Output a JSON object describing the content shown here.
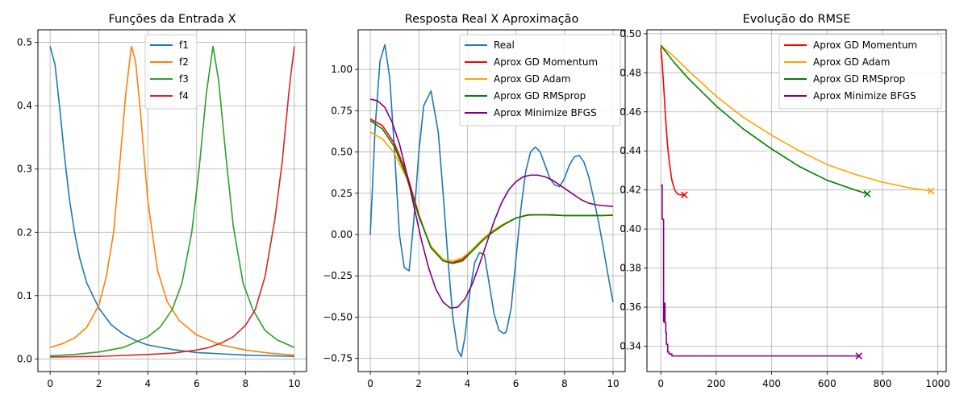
{
  "chart_data": [
    {
      "type": "line",
      "title": "Funções da Entrada X",
      "xlabel": "",
      "ylabel": "",
      "xlim": [
        -0.5,
        10.5
      ],
      "ylim": [
        -0.02,
        0.52
      ],
      "xticks": [
        0,
        2,
        4,
        6,
        8,
        10
      ],
      "yticks": [
        0.0,
        0.1,
        0.2,
        0.3,
        0.4,
        0.5
      ],
      "ytick_labels": [
        "0.0",
        "0.1",
        "0.2",
        "0.3",
        "0.4",
        "0.5"
      ],
      "grid": true,
      "legend_position": "top-center",
      "series": [
        {
          "name": "f1",
          "color": "#1f77b4",
          "x": [
            0,
            0.2,
            0.4,
            0.6,
            0.8,
            1.0,
            1.2,
            1.5,
            2.0,
            2.5,
            3.0,
            3.5,
            4.0,
            5.0,
            6.0,
            7.0,
            8.0,
            9.0,
            10.0
          ],
          "y": [
            0.494,
            0.465,
            0.394,
            0.316,
            0.25,
            0.2,
            0.161,
            0.12,
            0.08,
            0.054,
            0.039,
            0.029,
            0.022,
            0.015,
            0.01,
            0.008,
            0.006,
            0.005,
            0.004
          ]
        },
        {
          "name": "f2",
          "color": "#ff7f0e",
          "x": [
            0,
            0.5,
            1.0,
            1.5,
            2.0,
            2.3,
            2.6,
            2.9,
            3.1,
            3.33,
            3.5,
            3.7,
            4.0,
            4.4,
            4.8,
            5.3,
            6.0,
            7.0,
            8.0,
            9.0,
            10.0
          ],
          "y": [
            0.018,
            0.024,
            0.033,
            0.05,
            0.085,
            0.13,
            0.2,
            0.33,
            0.42,
            0.494,
            0.47,
            0.39,
            0.25,
            0.14,
            0.09,
            0.06,
            0.038,
            0.022,
            0.014,
            0.009,
            0.006
          ]
        },
        {
          "name": "f3",
          "color": "#2ca02c",
          "x": [
            0,
            1.0,
            2.0,
            3.0,
            4.0,
            4.5,
            5.0,
            5.4,
            5.8,
            6.1,
            6.4,
            6.67,
            6.9,
            7.2,
            7.5,
            7.9,
            8.3,
            8.8,
            9.3,
            10.0
          ],
          "y": [
            0.005,
            0.007,
            0.011,
            0.018,
            0.035,
            0.05,
            0.078,
            0.12,
            0.2,
            0.3,
            0.42,
            0.494,
            0.44,
            0.32,
            0.21,
            0.12,
            0.078,
            0.045,
            0.03,
            0.018
          ]
        },
        {
          "name": "f4",
          "color": "#d62728",
          "x": [
            0,
            2.0,
            4.0,
            5.0,
            6.0,
            6.5,
            7.0,
            7.5,
            8.0,
            8.4,
            8.8,
            9.2,
            9.5,
            9.8,
            10.0
          ],
          "y": [
            0.003,
            0.004,
            0.007,
            0.009,
            0.014,
            0.018,
            0.025,
            0.035,
            0.053,
            0.078,
            0.13,
            0.22,
            0.31,
            0.43,
            0.494
          ]
        }
      ]
    },
    {
      "type": "line",
      "title": "Resposta Real X Aproximação",
      "xlabel": "",
      "ylabel": "",
      "xlim": [
        -0.5,
        10.5
      ],
      "ylim": [
        -0.83,
        1.24
      ],
      "xticks": [
        0,
        2,
        4,
        6,
        8,
        10
      ],
      "yticks": [
        -0.75,
        -0.5,
        -0.25,
        0.0,
        0.25,
        0.5,
        0.75,
        1.0
      ],
      "ytick_labels": [
        "−0.75",
        "−0.50",
        "−0.25",
        "0.00",
        "0.25",
        "0.50",
        "0.75",
        "1.00"
      ],
      "grid": true,
      "legend_position": "top-right",
      "series": [
        {
          "name": "Real",
          "color": "#1f77b4",
          "x": [
            0,
            0.2,
            0.4,
            0.6,
            0.8,
            1.0,
            1.2,
            1.4,
            1.6,
            1.8,
            2.0,
            2.2,
            2.5,
            2.8,
            3.0,
            3.2,
            3.4,
            3.6,
            3.75,
            3.9,
            4.1,
            4.3,
            4.5,
            4.7,
            4.9,
            5.1,
            5.3,
            5.5,
            5.6,
            5.8,
            6.0,
            6.2,
            6.4,
            6.6,
            6.8,
            7.0,
            7.2,
            7.4,
            7.6,
            7.8,
            8.0,
            8.2,
            8.4,
            8.6,
            8.8,
            9.0,
            9.2,
            9.4,
            9.6,
            9.8,
            10.0
          ],
          "y": [
            0.0,
            0.65,
            1.05,
            1.15,
            0.95,
            0.5,
            0.0,
            -0.2,
            -0.22,
            0.1,
            0.5,
            0.78,
            0.87,
            0.62,
            0.25,
            -0.15,
            -0.5,
            -0.7,
            -0.74,
            -0.62,
            -0.35,
            -0.17,
            -0.11,
            -0.12,
            -0.3,
            -0.48,
            -0.58,
            -0.6,
            -0.59,
            -0.45,
            -0.15,
            0.15,
            0.38,
            0.5,
            0.53,
            0.5,
            0.42,
            0.34,
            0.3,
            0.29,
            0.34,
            0.42,
            0.47,
            0.48,
            0.44,
            0.35,
            0.22,
            0.08,
            -0.08,
            -0.25,
            -0.41
          ]
        },
        {
          "name": "Aprox GD Momentum",
          "color": "#ff0000",
          "x": [
            0,
            0.5,
            1.0,
            1.5,
            2.0,
            2.5,
            3.0,
            3.4,
            3.8,
            4.2,
            4.6,
            5.0,
            5.5,
            6.0,
            6.5,
            7.0,
            7.5,
            8.0,
            8.5,
            9.0,
            9.5,
            10.0
          ],
          "y": [
            0.7,
            0.66,
            0.55,
            0.37,
            0.12,
            -0.08,
            -0.16,
            -0.17,
            -0.15,
            -0.1,
            -0.04,
            0.01,
            0.06,
            0.1,
            0.12,
            0.12,
            0.12,
            0.115,
            0.115,
            0.115,
            0.115,
            0.117
          ]
        },
        {
          "name": "Aprox GD Adam",
          "color": "#ffa500",
          "x": [
            0,
            0.5,
            1.0,
            1.5,
            2.0,
            2.5,
            3.0,
            3.4,
            3.8,
            4.2,
            4.6,
            5.0,
            5.5,
            6.0,
            6.5,
            7.0,
            7.5,
            8.0,
            8.5,
            9.0,
            9.5,
            10.0
          ],
          "y": [
            0.62,
            0.58,
            0.49,
            0.34,
            0.11,
            -0.07,
            -0.15,
            -0.16,
            -0.14,
            -0.09,
            -0.03,
            0.02,
            0.065,
            0.1,
            0.118,
            0.12,
            0.118,
            0.115,
            0.115,
            0.115,
            0.115,
            0.117
          ]
        },
        {
          "name": "Aprox GD RMSprop",
          "color": "#008000",
          "x": [
            0,
            0.5,
            1.0,
            1.5,
            2.0,
            2.5,
            3.0,
            3.4,
            3.8,
            4.2,
            4.6,
            5.0,
            5.5,
            6.0,
            6.5,
            7.0,
            7.5,
            8.0,
            8.5,
            9.0,
            9.5,
            10.0
          ],
          "y": [
            0.69,
            0.64,
            0.53,
            0.35,
            0.11,
            -0.08,
            -0.16,
            -0.175,
            -0.16,
            -0.1,
            -0.04,
            0.01,
            0.06,
            0.1,
            0.118,
            0.12,
            0.118,
            0.115,
            0.115,
            0.115,
            0.115,
            0.117
          ]
        },
        {
          "name": "Aprox Minimize BFGS",
          "color": "#800080",
          "x": [
            0,
            0.3,
            0.6,
            0.9,
            1.2,
            1.5,
            1.8,
            2.1,
            2.4,
            2.7,
            3.0,
            3.3,
            3.6,
            3.9,
            4.2,
            4.5,
            4.8,
            5.1,
            5.4,
            5.7,
            6.0,
            6.3,
            6.6,
            6.9,
            7.2,
            7.5,
            7.8,
            8.1,
            8.4,
            8.7,
            9.0,
            9.3,
            9.6,
            10.0
          ],
          "y": [
            0.82,
            0.81,
            0.77,
            0.68,
            0.55,
            0.37,
            0.17,
            -0.03,
            -0.2,
            -0.33,
            -0.41,
            -0.445,
            -0.44,
            -0.39,
            -0.3,
            -0.18,
            -0.05,
            0.08,
            0.19,
            0.27,
            0.32,
            0.35,
            0.36,
            0.36,
            0.35,
            0.33,
            0.3,
            0.27,
            0.24,
            0.21,
            0.19,
            0.18,
            0.175,
            0.17
          ]
        }
      ]
    },
    {
      "type": "line",
      "title": "Evolução do RMSE",
      "xlabel": "",
      "ylabel": "",
      "xlim": [
        -50,
        1030
      ],
      "ylim": [
        0.327,
        0.502
      ],
      "xticks": [
        0,
        200,
        400,
        600,
        800,
        1000
      ],
      "yticks": [
        0.34,
        0.36,
        0.38,
        0.4,
        0.42,
        0.44,
        0.46,
        0.48,
        0.5
      ],
      "ytick_labels": [
        "0.34",
        "0.36",
        "0.38",
        "0.40",
        "0.42",
        "0.44",
        "0.46",
        "0.48",
        "0.50"
      ],
      "grid": true,
      "legend_position": "top-right",
      "series": [
        {
          "name": "Aprox GD Momentum",
          "color": "#ff0000",
          "x": [
            0,
            5,
            10,
            15,
            20,
            25,
            30,
            40,
            50,
            60,
            70,
            85
          ],
          "y": [
            0.493,
            0.485,
            0.474,
            0.462,
            0.451,
            0.442,
            0.435,
            0.425,
            0.42,
            0.418,
            0.4175,
            0.4175
          ],
          "end_marker": "x"
        },
        {
          "name": "Aprox GD Adam",
          "color": "#ffa500",
          "x": [
            0,
            50,
            100,
            200,
            300,
            400,
            500,
            600,
            700,
            800,
            900,
            975
          ],
          "y": [
            0.494,
            0.488,
            0.481,
            0.468,
            0.457,
            0.448,
            0.44,
            0.433,
            0.428,
            0.424,
            0.421,
            0.4195
          ],
          "end_marker": "x"
        },
        {
          "name": "Aprox GD RMSprop",
          "color": "#008000",
          "x": [
            0,
            50,
            100,
            200,
            300,
            400,
            500,
            600,
            700,
            745
          ],
          "y": [
            0.494,
            0.485,
            0.477,
            0.463,
            0.451,
            0.441,
            0.432,
            0.425,
            0.42,
            0.418
          ],
          "end_marker": "x"
        },
        {
          "name": "Aprox Minimize BFGS",
          "color": "#800080",
          "x": [
            0,
            5,
            5,
            10,
            10,
            13,
            13,
            15,
            15,
            18,
            18,
            20,
            20,
            25,
            25,
            30,
            30,
            40,
            40,
            50,
            100,
            200,
            400,
            600,
            715
          ],
          "y": [
            0.4225,
            0.4225,
            0.405,
            0.405,
            0.3525,
            0.3525,
            0.362,
            0.362,
            0.352,
            0.352,
            0.347,
            0.347,
            0.341,
            0.341,
            0.337,
            0.337,
            0.336,
            0.336,
            0.335,
            0.335,
            0.335,
            0.335,
            0.335,
            0.335,
            0.335
          ],
          "end_marker": "x"
        }
      ]
    }
  ]
}
